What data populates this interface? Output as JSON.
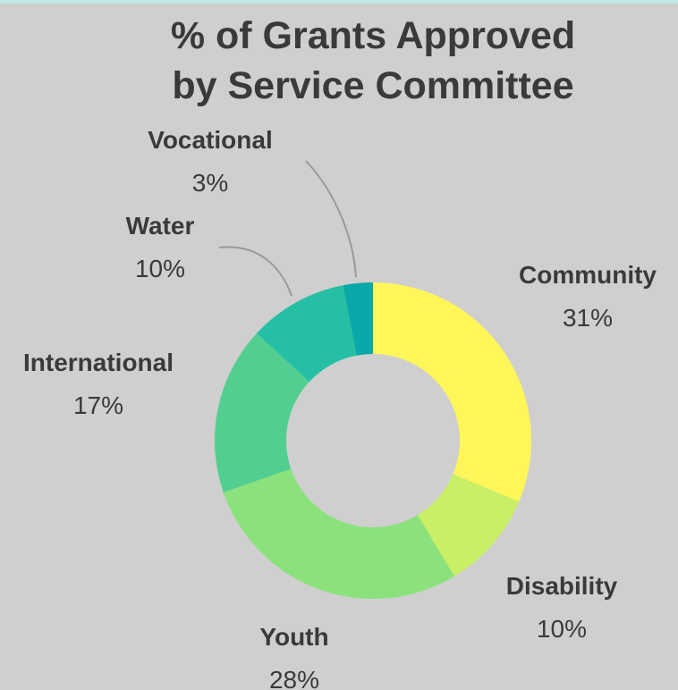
{
  "title_lines": [
    "% of Grants Approved",
    "by Service Committee"
  ],
  "chart_data": {
    "type": "pie",
    "variant": "donut",
    "title": "% of Grants Approved by Service Committee",
    "categories": [
      "Community",
      "Disability",
      "Youth",
      "International",
      "Water",
      "Vocational"
    ],
    "values": [
      31,
      10,
      28,
      17,
      10,
      3
    ],
    "labels": [
      "31%",
      "10%",
      "28%",
      "17%",
      "10%",
      "3%"
    ],
    "colors": [
      "#fff65a",
      "#c8ef65",
      "#8be27c",
      "#52cf90",
      "#25bfa5",
      "#0aa8a8"
    ],
    "legend": "none"
  }
}
